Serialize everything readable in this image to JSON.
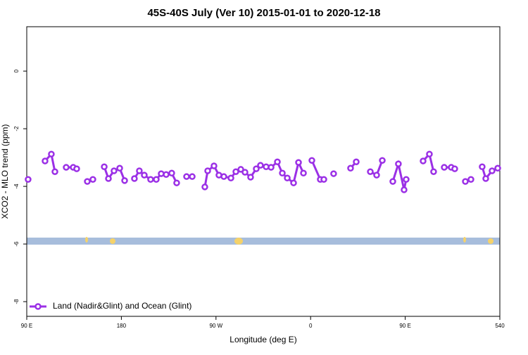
{
  "chart_data": {
    "type": "line",
    "title": "45S-40S July (Ver 10)   2015-01-01 to 2020-12-18",
    "x_label": "Longitude (deg E)",
    "y_label": "XCO2 - MLO trend (ppm)",
    "x": [
      91.3,
      null,
      107.4,
      113.4,
      116.8,
      null,
      127.5,
      134.2,
      137.5,
      null,
      147.6,
      152.9,
      null,
      163.7,
      167.7,
      173.0,
      178.4,
      183.1,
      null,
      192.4,
      197.1,
      201.8,
      207.8,
      213.2,
      217.9,
      222.6,
      227.9,
      232.6,
      null,
      242.0,
      247.4,
      null,
      259.4,
      262.1,
      268.1,
      272.8,
      277.5,
      284.2,
      288.9,
      293.6,
      297.6,
      302.9,
      308.3,
      312.3,
      317.7,
      322.4,
      328.4,
      333.1,
      337.8,
      343.8,
      348.5,
      353.2,
      null,
      361.2,
      369.2,
      372.6,
      null,
      381.9,
      null,
      398.0,
      403.4,
      null,
      416.8,
      422.8,
      428.2,
      null,
      438.2,
      443.5,
      448.9,
      450.9,
      null,
      467.0,
      473.0,
      477.0,
      null,
      487.1,
      493.8,
      497.1,
      null,
      507.2,
      512.5,
      null,
      523.2,
      526.6,
      532.6,
      538.0
    ],
    "series": [
      {
        "name": "Land (Nadir&Glint) and Ocean (Glint)",
        "color": "#9b30e6",
        "values": [
          -3.76,
          null,
          -3.12,
          -2.88,
          -3.49,
          null,
          -3.34,
          -3.34,
          -3.39,
          null,
          -3.83,
          -3.76,
          null,
          -3.32,
          -3.73,
          -3.46,
          -3.37,
          -3.8,
          null,
          -3.73,
          -3.46,
          -3.61,
          -3.76,
          -3.76,
          -3.56,
          -3.59,
          -3.54,
          -3.88,
          null,
          -3.66,
          -3.66,
          null,
          -4.02,
          -3.46,
          -3.29,
          -3.61,
          -3.66,
          -3.71,
          -3.49,
          -3.41,
          -3.51,
          -3.68,
          -3.39,
          -3.27,
          -3.32,
          -3.34,
          -3.15,
          -3.54,
          -3.71,
          -3.88,
          -3.17,
          -3.54,
          null,
          -3.1,
          -3.76,
          -3.76,
          null,
          -3.56,
          null,
          -3.37,
          -3.15,
          null,
          -3.49,
          -3.61,
          -3.1,
          null,
          -3.83,
          -3.22,
          -4.12,
          -3.76,
          null,
          -3.12,
          -2.88,
          -3.49,
          null,
          -3.34,
          -3.34,
          -3.39,
          null,
          -3.83,
          -3.76,
          null,
          -3.32,
          -3.73,
          -3.46,
          -3.37
        ]
      }
    ],
    "xlim": [
      90,
      540
    ],
    "xticks": [
      {
        "value": 90,
        "label": "90 E"
      },
      180,
      {
        "value": 270,
        "label": "90 W"
      },
      {
        "value": 360,
        "label": "0"
      },
      {
        "value": 450,
        "label": "90 E"
      },
      540
    ],
    "ylim": [
      -8.51,
      1.54
    ],
    "yticks": [
      0,
      -2,
      -4,
      -6,
      -8
    ],
    "legend": "bottom-left"
  }
}
